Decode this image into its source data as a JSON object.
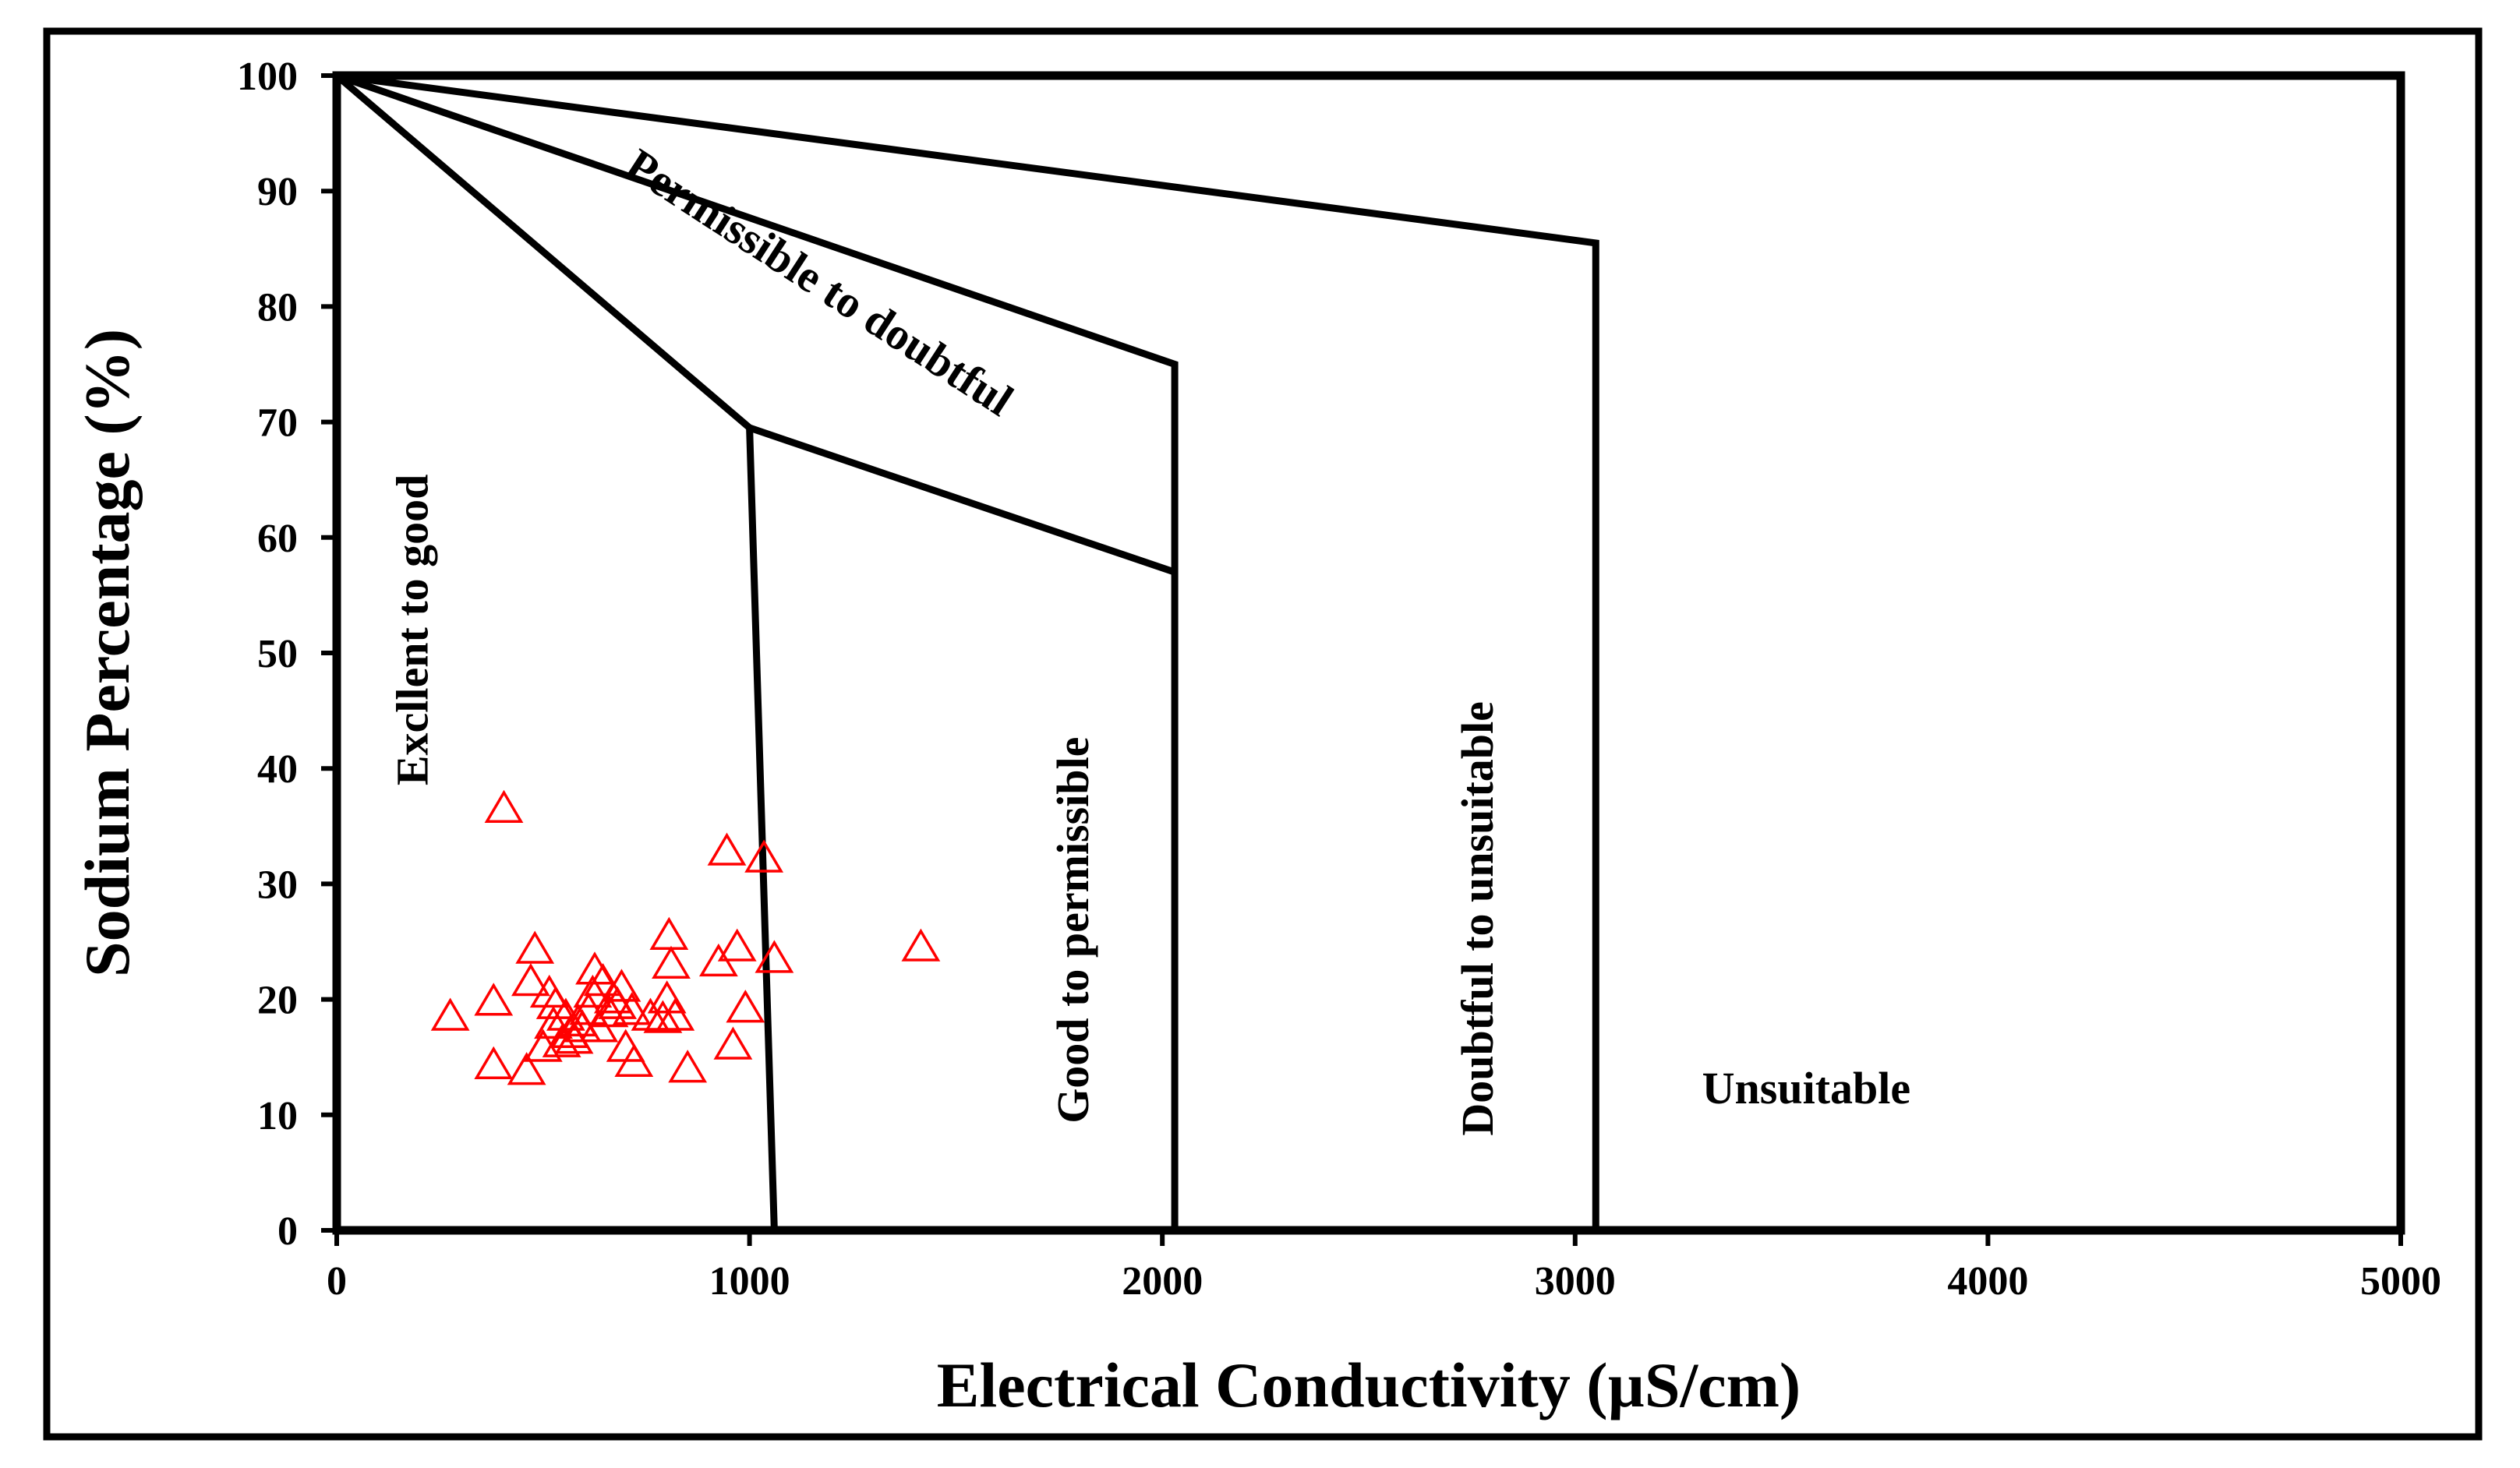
{
  "chart_data": {
    "type": "scatter",
    "title": "",
    "xlabel": "Electrical Conductivity (µS/cm)",
    "ylabel": "Sodium Percentage (%)",
    "xlim": [
      0,
      5000
    ],
    "ylim": [
      0,
      100
    ],
    "x_ticks": [
      0,
      1000,
      2000,
      3000,
      4000,
      5000
    ],
    "y_ticks": [
      0,
      10,
      20,
      30,
      40,
      50,
      60,
      70,
      80,
      90,
      100
    ],
    "grid": false,
    "marker": "open-triangle",
    "marker_color": "#ff0000",
    "line_color": "#000000",
    "boundaries": [
      {
        "name": "excellent-good-boundary",
        "points": [
          [
            0,
            100
          ],
          [
            1000,
            69.5
          ],
          [
            1060,
            0
          ]
        ]
      },
      {
        "name": "good-permissible-lower-boundary",
        "points": [
          [
            1000,
            69.5
          ],
          [
            2030,
            57
          ]
        ]
      },
      {
        "name": "permissible-doubtful-boundary",
        "points": [
          [
            0,
            100
          ],
          [
            2030,
            75
          ],
          [
            2030,
            0
          ]
        ]
      },
      {
        "name": "doubtful-unsuitable-boundary",
        "points": [
          [
            0,
            100
          ],
          [
            3050,
            85.5
          ],
          [
            3050,
            0
          ]
        ]
      }
    ],
    "region_labels": [
      {
        "text": "Excllent to good",
        "x": 220,
        "y": 52,
        "rotation": -90
      },
      {
        "text": "Permissible to doubtful",
        "x": 1150,
        "y": 81,
        "rotation": 33
      },
      {
        "text": "Good to permissible",
        "x": 1820,
        "y": 26,
        "rotation": -90
      },
      {
        "text": "Doubtful to unsuitable",
        "x": 2800,
        "y": 27,
        "rotation": -90
      },
      {
        "text": "Unsuitable",
        "x": 3560,
        "y": 11,
        "rotation": 0
      }
    ],
    "series": [
      {
        "name": "samples",
        "points": [
          [
            275,
            18.5
          ],
          [
            380,
            19.8
          ],
          [
            380,
            14.3
          ],
          [
            405,
            36.5
          ],
          [
            460,
            13.8
          ],
          [
            470,
            21.5
          ],
          [
            480,
            24.3
          ],
          [
            500,
            15.8
          ],
          [
            515,
            20.5
          ],
          [
            525,
            17.8
          ],
          [
            530,
            19.5
          ],
          [
            545,
            16.2
          ],
          [
            555,
            18.5
          ],
          [
            565,
            17.0
          ],
          [
            575,
            16.5
          ],
          [
            585,
            18.0
          ],
          [
            595,
            17.5
          ],
          [
            610,
            19.0
          ],
          [
            620,
            20.5
          ],
          [
            625,
            22.5
          ],
          [
            635,
            17.5
          ],
          [
            645,
            21.5
          ],
          [
            660,
            18.8
          ],
          [
            670,
            20.0
          ],
          [
            680,
            19.5
          ],
          [
            690,
            21.0
          ],
          [
            700,
            15.8
          ],
          [
            715,
            19.0
          ],
          [
            720,
            14.5
          ],
          [
            760,
            18.5
          ],
          [
            790,
            18.3
          ],
          [
            800,
            20.0
          ],
          [
            805,
            25.5
          ],
          [
            810,
            23.0
          ],
          [
            820,
            18.5
          ],
          [
            850,
            14.0
          ],
          [
            925,
            23.2
          ],
          [
            945,
            32.8
          ],
          [
            960,
            16.0
          ],
          [
            970,
            24.5
          ],
          [
            990,
            19.2
          ],
          [
            1035,
            32.2
          ],
          [
            1060,
            23.5
          ],
          [
            1415,
            24.5
          ]
        ]
      }
    ]
  }
}
